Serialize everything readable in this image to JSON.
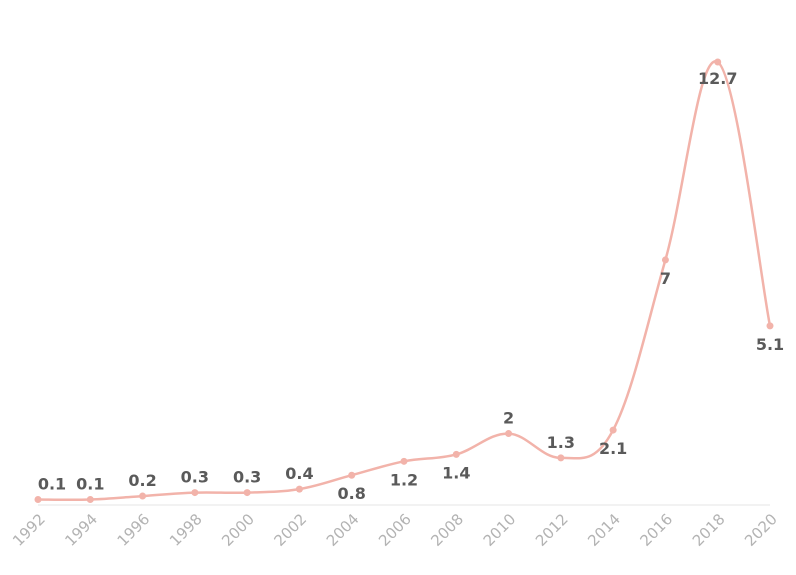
{
  "chart_data": {
    "type": "line",
    "title": "",
    "xlabel": "",
    "ylabel": "",
    "x": [
      "1992",
      "1994",
      "1996",
      "1998",
      "2000",
      "2002",
      "2004",
      "2006",
      "2008",
      "2010",
      "2012",
      "2014",
      "2016",
      "2018",
      "2020"
    ],
    "series": [
      {
        "name": "value",
        "values": [
          0.1,
          0.1,
          0.2,
          0.3,
          0.3,
          0.4,
          0.8,
          1.2,
          1.4,
          2,
          1.3,
          2.1,
          7,
          12.7,
          5.1
        ],
        "labels": [
          "0.1",
          "0.1",
          "0.2",
          "0.3",
          "0.3",
          "0.4",
          "0.8",
          "1.2",
          "1.4",
          "2",
          "1.3",
          "2.1",
          "7",
          "12.7",
          "5.1"
        ],
        "color": "#f2b3aa"
      }
    ],
    "ylim": [
      0,
      12.7
    ],
    "grid": false,
    "legend": "none"
  },
  "colors": {
    "line": "#f2b3aa",
    "axis": "#e6e6e6",
    "tick_text": "#b3b3b3",
    "label_text": "#5a5a5a"
  }
}
